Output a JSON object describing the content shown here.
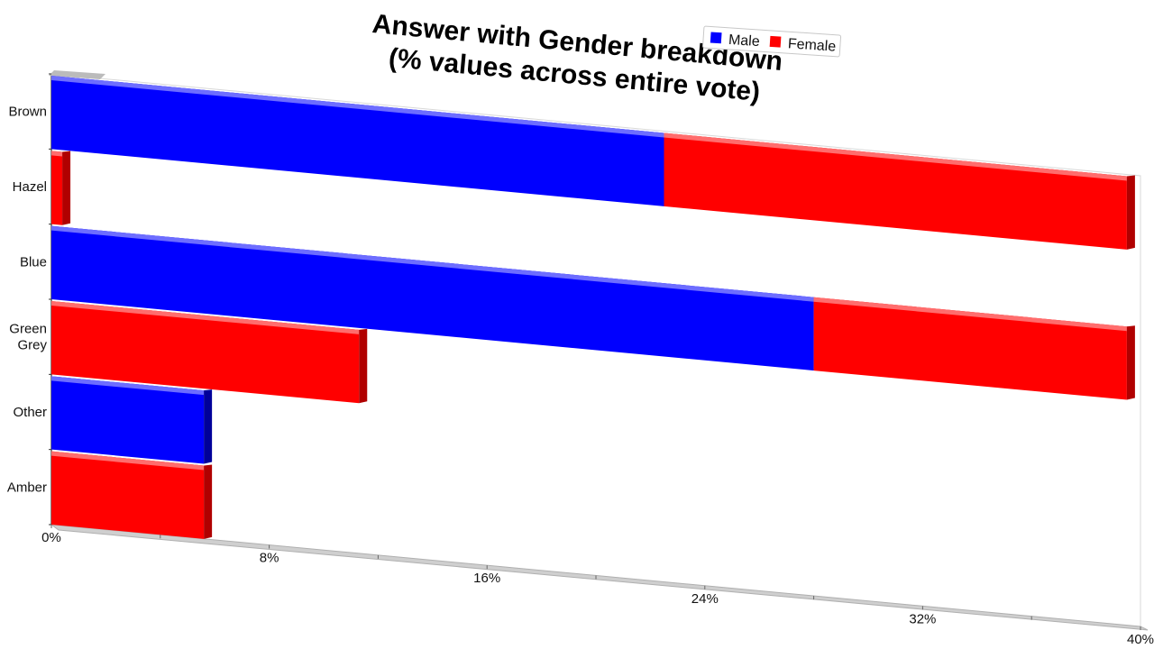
{
  "chart_data": {
    "type": "bar",
    "orientation": "horizontal",
    "stacked": true,
    "title": "Answer with Gender breakdown\n(% values across entire vote)",
    "categories": [
      "Brown",
      "Hazel",
      "Blue",
      "Green\nGrey",
      "Other",
      "Amber"
    ],
    "series": [
      {
        "name": "Male",
        "color": "#0000ff",
        "values": [
          22.5,
          0,
          28,
          0,
          5.6,
          0
        ]
      },
      {
        "name": "Female",
        "color": "#ff0000",
        "values": [
          17,
          0.4,
          11.5,
          11.3,
          0,
          5.6
        ]
      }
    ],
    "xaxis": {
      "ticks": [
        "0%",
        "8%",
        "16%",
        "24%",
        "32%",
        "40%"
      ],
      "xlim": [
        0,
        40
      ]
    },
    "legend": {
      "placement": "top-right"
    },
    "grid": false
  }
}
